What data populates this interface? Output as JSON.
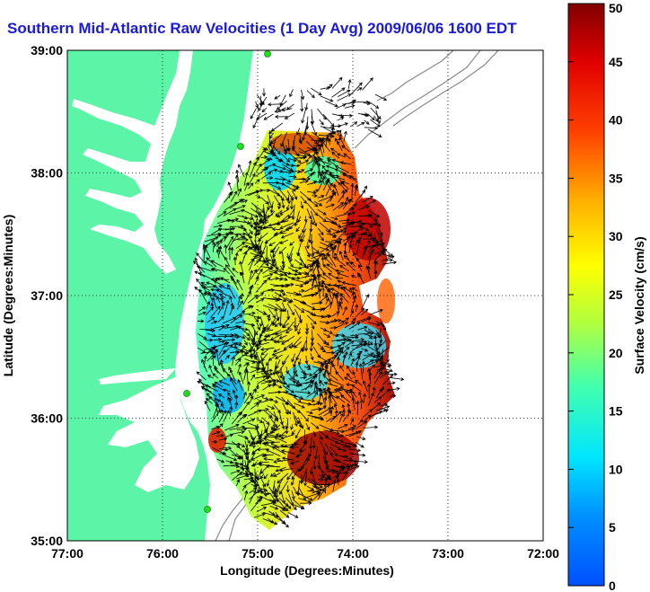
{
  "title": "Southern Mid-Atlantic Raw Velocities (1 Day Avg) 2009/06/06 1600 EDT",
  "map": {
    "xlabel": "Longitude (Degrees:Minutes)",
    "ylabel": "Latitude (Degrees:Minutes)",
    "lon_range": [
      -77,
      -72
    ],
    "lat_range": [
      35,
      39
    ],
    "x_ticks": [
      {
        "lon": -77,
        "label": "77:00"
      },
      {
        "lon": -76,
        "label": "76:00"
      },
      {
        "lon": -75,
        "label": "75:00"
      },
      {
        "lon": -74,
        "label": "74:00"
      },
      {
        "lon": -73,
        "label": "73:00"
      },
      {
        "lon": -72,
        "label": "72:00"
      }
    ],
    "y_ticks": [
      {
        "lat": 39,
        "label": "39:00"
      },
      {
        "lat": 38,
        "label": "38:00"
      },
      {
        "lat": 37,
        "label": "37:00"
      },
      {
        "lat": 36,
        "label": "36:00"
      },
      {
        "lat": 35,
        "label": "35:00"
      }
    ],
    "grid": "dotted",
    "colors": {
      "land": "#5cf5a8",
      "ocean": "#ffffff",
      "bathymetry": "#8a8a8a",
      "vector": "#000000",
      "station": "#22dd22"
    }
  },
  "colorbar": {
    "label": "Surface Velocity (cm/s)",
    "min": 0,
    "max": 50,
    "ticks": [
      "0",
      "5",
      "10",
      "15",
      "20",
      "25",
      "30",
      "35",
      "40",
      "45",
      "50"
    ],
    "colormap": "jet"
  }
}
